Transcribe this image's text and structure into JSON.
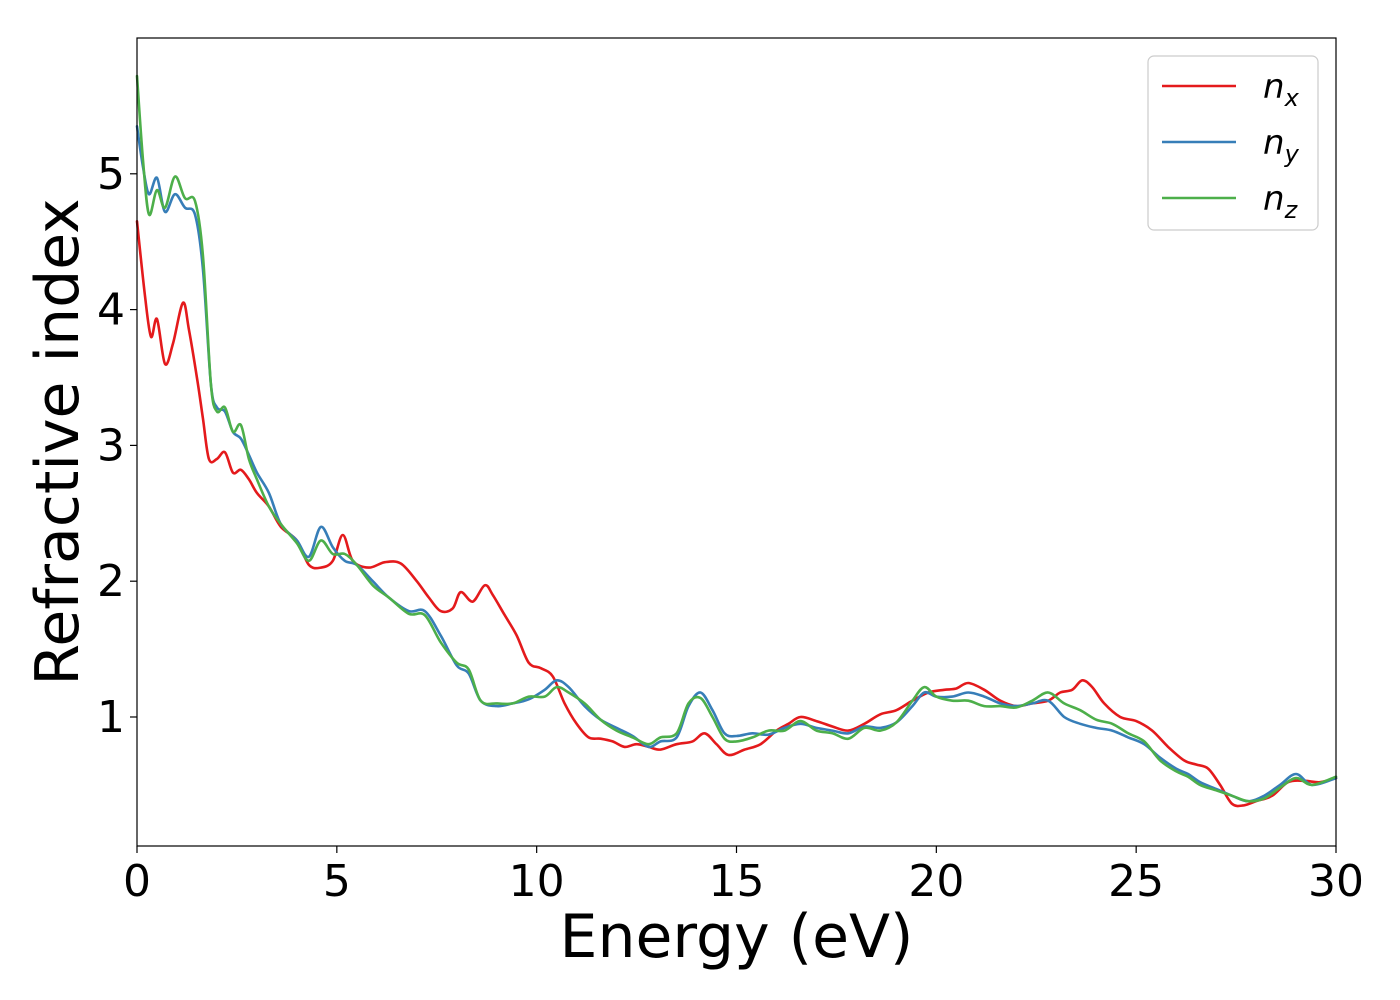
{
  "chart_data": {
    "type": "line",
    "xlabel": "Energy (eV)",
    "ylabel": "Refractive index",
    "xlim": [
      0,
      30
    ],
    "ylim": [
      0.05,
      6.0
    ],
    "xticks": [
      0,
      5,
      10,
      15,
      20,
      25,
      30
    ],
    "yticks": [
      1,
      2,
      3,
      4,
      5
    ],
    "grid": false,
    "legend_position": "top-right",
    "series": [
      {
        "name": "n",
        "sub": "x",
        "color": "#e41a1c",
        "x": [
          0,
          0.2,
          0.35,
          0.5,
          0.7,
          0.9,
          1.15,
          1.3,
          1.5,
          1.65,
          1.8,
          2.0,
          2.2,
          2.4,
          2.6,
          2.8,
          3.0,
          3.3,
          3.6,
          4.0,
          4.3,
          4.6,
          4.9,
          5.15,
          5.4,
          5.8,
          6.2,
          6.6,
          7.0,
          7.3,
          7.6,
          7.9,
          8.1,
          8.4,
          8.7,
          8.9,
          9.2,
          9.5,
          9.8,
          10.1,
          10.4,
          10.7,
          11.0,
          11.3,
          11.6,
          11.9,
          12.2,
          12.5,
          12.8,
          13.1,
          13.5,
          13.9,
          14.2,
          14.5,
          14.8,
          15.2,
          15.6,
          16.0,
          16.3,
          16.6,
          17.0,
          17.4,
          17.8,
          18.2,
          18.6,
          19.0,
          19.4,
          19.8,
          20.2,
          20.5,
          20.8,
          21.2,
          21.6,
          22.0,
          22.4,
          22.8,
          23.1,
          23.4,
          23.65,
          23.9,
          24.2,
          24.6,
          25.0,
          25.4,
          25.8,
          26.2,
          26.5,
          26.8,
          27.1,
          27.4,
          27.7,
          28.0,
          28.4,
          28.8,
          29.2,
          29.6,
          30.0
        ],
        "y": [
          4.65,
          4.1,
          3.8,
          3.93,
          3.6,
          3.75,
          4.05,
          3.85,
          3.5,
          3.2,
          2.9,
          2.9,
          2.95,
          2.8,
          2.82,
          2.75,
          2.65,
          2.55,
          2.4,
          2.3,
          2.12,
          2.1,
          2.15,
          2.34,
          2.15,
          2.1,
          2.14,
          2.13,
          2.0,
          1.88,
          1.78,
          1.8,
          1.92,
          1.85,
          1.97,
          1.9,
          1.75,
          1.6,
          1.4,
          1.36,
          1.3,
          1.1,
          0.95,
          0.85,
          0.84,
          0.82,
          0.78,
          0.8,
          0.78,
          0.76,
          0.8,
          0.82,
          0.88,
          0.8,
          0.72,
          0.76,
          0.8,
          0.9,
          0.95,
          1.0,
          0.97,
          0.93,
          0.9,
          0.95,
          1.02,
          1.05,
          1.12,
          1.18,
          1.2,
          1.21,
          1.25,
          1.2,
          1.12,
          1.08,
          1.1,
          1.12,
          1.18,
          1.2,
          1.27,
          1.22,
          1.1,
          1.0,
          0.97,
          0.9,
          0.78,
          0.68,
          0.65,
          0.62,
          0.5,
          0.36,
          0.35,
          0.38,
          0.42,
          0.52,
          0.53,
          0.52,
          0.55
        ]
      },
      {
        "name": "n",
        "sub": "y",
        "color": "#377eb8",
        "x": [
          0,
          0.15,
          0.3,
          0.5,
          0.7,
          0.95,
          1.2,
          1.45,
          1.65,
          1.85,
          2.0,
          2.2,
          2.4,
          2.6,
          2.8,
          3.0,
          3.3,
          3.6,
          4.0,
          4.3,
          4.6,
          4.9,
          5.2,
          5.5,
          5.9,
          6.3,
          6.8,
          7.2,
          7.6,
          8.0,
          8.3,
          8.6,
          9.0,
          9.4,
          9.8,
          10.2,
          10.5,
          10.8,
          11.2,
          11.6,
          12.0,
          12.4,
          12.8,
          13.1,
          13.5,
          13.8,
          14.1,
          14.4,
          14.7,
          15.0,
          15.4,
          15.8,
          16.2,
          16.6,
          17.0,
          17.4,
          17.8,
          18.2,
          18.6,
          19.0,
          19.4,
          19.7,
          20.0,
          20.4,
          20.8,
          21.2,
          21.6,
          22.0,
          22.4,
          22.8,
          23.2,
          23.6,
          24.0,
          24.4,
          24.8,
          25.2,
          25.6,
          26.0,
          26.3,
          26.6,
          27.0,
          27.4,
          27.8,
          28.2,
          28.6,
          29.0,
          29.4,
          30.0
        ],
        "y": [
          5.35,
          5.05,
          4.85,
          4.97,
          4.72,
          4.85,
          4.75,
          4.7,
          4.3,
          3.45,
          3.28,
          3.25,
          3.1,
          3.05,
          2.93,
          2.8,
          2.65,
          2.42,
          2.3,
          2.18,
          2.4,
          2.25,
          2.15,
          2.12,
          2.0,
          1.88,
          1.78,
          1.78,
          1.6,
          1.38,
          1.32,
          1.12,
          1.08,
          1.1,
          1.13,
          1.2,
          1.27,
          1.22,
          1.08,
          0.98,
          0.92,
          0.86,
          0.78,
          0.82,
          0.85,
          1.08,
          1.18,
          1.05,
          0.88,
          0.86,
          0.88,
          0.87,
          0.92,
          0.95,
          0.92,
          0.9,
          0.88,
          0.93,
          0.92,
          0.96,
          1.08,
          1.18,
          1.15,
          1.15,
          1.18,
          1.15,
          1.1,
          1.08,
          1.1,
          1.12,
          1.0,
          0.95,
          0.92,
          0.9,
          0.85,
          0.8,
          0.7,
          0.62,
          0.58,
          0.52,
          0.47,
          0.42,
          0.38,
          0.42,
          0.5,
          0.58,
          0.5,
          0.55
        ]
      },
      {
        "name": "n",
        "sub": "z",
        "color": "#4daf4a",
        "x": [
          0,
          0.15,
          0.3,
          0.5,
          0.7,
          0.95,
          1.2,
          1.45,
          1.65,
          1.85,
          2.0,
          2.2,
          2.4,
          2.6,
          2.8,
          3.0,
          3.3,
          3.6,
          4.0,
          4.3,
          4.6,
          4.9,
          5.2,
          5.5,
          5.9,
          6.3,
          6.8,
          7.2,
          7.6,
          8.0,
          8.3,
          8.6,
          9.0,
          9.4,
          9.8,
          10.2,
          10.5,
          10.8,
          11.2,
          11.6,
          12.0,
          12.4,
          12.8,
          13.1,
          13.5,
          13.8,
          14.1,
          14.4,
          14.7,
          15.0,
          15.4,
          15.8,
          16.2,
          16.6,
          17.0,
          17.4,
          17.8,
          18.2,
          18.6,
          19.0,
          19.4,
          19.7,
          20.0,
          20.4,
          20.8,
          21.2,
          21.6,
          22.0,
          22.4,
          22.8,
          23.2,
          23.6,
          24.0,
          24.4,
          24.8,
          25.2,
          25.6,
          26.0,
          26.3,
          26.6,
          27.0,
          27.4,
          27.8,
          28.2,
          28.6,
          29.0,
          29.4,
          30.0
        ],
        "y": [
          5.72,
          5.1,
          4.7,
          4.88,
          4.75,
          4.98,
          4.82,
          4.8,
          4.4,
          3.45,
          3.25,
          3.28,
          3.1,
          3.15,
          2.9,
          2.75,
          2.55,
          2.42,
          2.28,
          2.15,
          2.3,
          2.2,
          2.2,
          2.12,
          1.97,
          1.88,
          1.76,
          1.75,
          1.55,
          1.4,
          1.35,
          1.12,
          1.1,
          1.1,
          1.15,
          1.15,
          1.22,
          1.18,
          1.1,
          0.98,
          0.9,
          0.85,
          0.8,
          0.85,
          0.88,
          1.1,
          1.14,
          1.0,
          0.84,
          0.82,
          0.85,
          0.9,
          0.9,
          0.97,
          0.9,
          0.88,
          0.84,
          0.92,
          0.9,
          0.96,
          1.12,
          1.22,
          1.15,
          1.12,
          1.12,
          1.08,
          1.08,
          1.07,
          1.12,
          1.18,
          1.1,
          1.05,
          0.98,
          0.95,
          0.88,
          0.82,
          0.68,
          0.6,
          0.56,
          0.5,
          0.46,
          0.42,
          0.38,
          0.4,
          0.48,
          0.55,
          0.5,
          0.56
        ]
      }
    ]
  }
}
